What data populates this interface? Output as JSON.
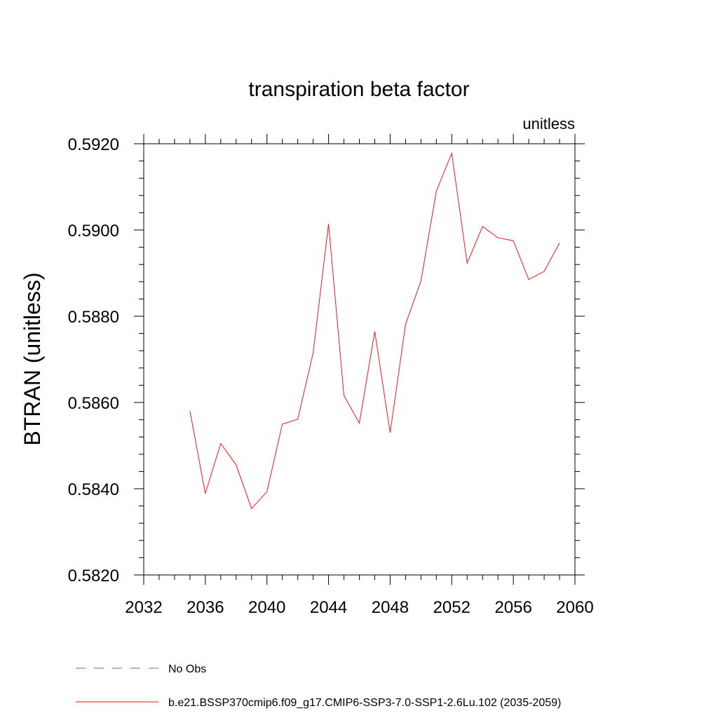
{
  "chart_data": {
    "type": "line",
    "title": "transpiration beta factor",
    "units_label": "unitless",
    "ylabel": "BTRAN  (unitless)",
    "xlabel": "",
    "xlim": [
      2032,
      2060
    ],
    "ylim": [
      0.582,
      0.592
    ],
    "x_ticks": [
      2032,
      2036,
      2040,
      2044,
      2048,
      2052,
      2056,
      2060
    ],
    "x_tick_labels": [
      "2032",
      "2036",
      "2040",
      "2044",
      "2048",
      "2052",
      "2056",
      "2060"
    ],
    "y_ticks": [
      0.582,
      0.584,
      0.586,
      0.588,
      0.59,
      0.592
    ],
    "y_tick_labels": [
      "0.5820",
      "0.5840",
      "0.5860",
      "0.5880",
      "0.5900",
      "0.5920"
    ],
    "grid": false,
    "legend_position": "bottom",
    "series": [
      {
        "name": "b.e21.BSSP370cmip6.f09_g17.CMIP6-SSP3-7.0-SSP1-2.6Lu.102 (2035-2059)",
        "color": "#e8191f",
        "x": [
          2035,
          2036,
          2037,
          2038,
          2039,
          2040,
          2041,
          2042,
          2043,
          2044,
          2045,
          2046,
          2047,
          2048,
          2049,
          2050,
          2051,
          2052,
          2053,
          2054,
          2055,
          2056,
          2057,
          2058,
          2059
        ],
        "y": [
          0.5858,
          0.58389,
          0.58505,
          0.58455,
          0.58354,
          0.58393,
          0.5855,
          0.58561,
          0.58715,
          0.59014,
          0.58616,
          0.58552,
          0.58765,
          0.5853,
          0.58781,
          0.58882,
          0.5909,
          0.59178,
          0.58923,
          0.59008,
          0.58982,
          0.58975,
          0.58885,
          0.58904,
          0.5897
        ]
      }
    ],
    "legend": [
      {
        "label": "No Obs",
        "color": "#6a5acd",
        "style": "dashed"
      },
      {
        "label": "b.e21.BSSP370cmip6.f09_g17.CMIP6-SSP3-7.0-SSP1-2.6Lu.102 (2035-2059)",
        "color": "#e8191f",
        "style": "solid"
      }
    ]
  }
}
